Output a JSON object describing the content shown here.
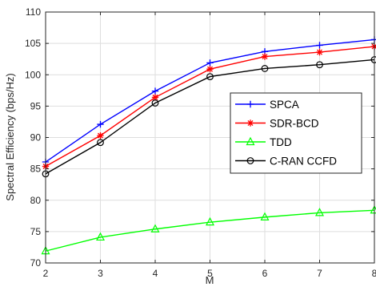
{
  "chart_data": {
    "type": "line",
    "title": "",
    "xlabel": "M",
    "ylabel": "Spectral Efficiency (bps/Hz)",
    "x": [
      2,
      3,
      4,
      5,
      6,
      7,
      8
    ],
    "xlim": [
      2,
      8
    ],
    "ylim": [
      70,
      110
    ],
    "xticks": [
      "2",
      "3",
      "4",
      "5",
      "6",
      "7",
      "8"
    ],
    "yticks": [
      "70",
      "75",
      "80",
      "85",
      "90",
      "95",
      "100",
      "105",
      "110"
    ],
    "grid": true,
    "legend_position": "right",
    "series": [
      {
        "name": "SPCA",
        "color": "#0000ff",
        "marker": "plus",
        "values": [
          86.1,
          92.1,
          97.4,
          101.9,
          103.7,
          104.7,
          105.6
        ]
      },
      {
        "name": "SDR-BCD",
        "color": "#ff0000",
        "marker": "asterisk",
        "values": [
          85.4,
          90.3,
          96.4,
          100.9,
          102.9,
          103.6,
          104.5
        ]
      },
      {
        "name": "TDD",
        "color": "#00ff00",
        "marker": "triangle",
        "values": [
          71.9,
          74.1,
          75.4,
          76.5,
          77.3,
          78.0,
          78.4
        ]
      },
      {
        "name": "C-RAN CCFD",
        "color": "#000000",
        "marker": "circle",
        "values": [
          84.2,
          89.2,
          95.5,
          99.7,
          101.0,
          101.6,
          102.4
        ]
      }
    ]
  }
}
